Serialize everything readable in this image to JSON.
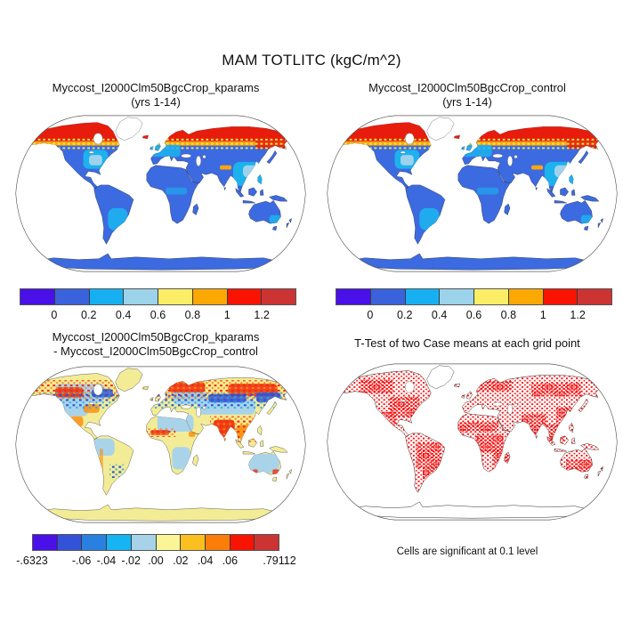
{
  "page": {
    "title": "MAM TOTLITC (kgC/m^2)",
    "background": "#ffffff"
  },
  "panels": {
    "top_left": {
      "title_line1": "Myccost_I2000Clm50BgcCrop_kparams",
      "title_line2": "(yrs 1-14)"
    },
    "top_right": {
      "title_line1": "Myccost_I2000Clm50BgcCrop_control",
      "title_line2": "(yrs 1-14)"
    },
    "bottom_left": {
      "title_line1": "Myccost_I2000Clm50BgcCrop_kparams",
      "title_line2": "- Myccost_I2000Clm50BgcCrop_control"
    },
    "bottom_right": {
      "title_line1": "T-Test of two Case means at each grid point",
      "caption": "Cells are significant at 0.1 level"
    }
  },
  "colorbars": {
    "value_scale": {
      "colors": [
        "#4a10e8",
        "#3a62dc",
        "#16b0f2",
        "#9cd2ea",
        "#fbee66",
        "#fba800",
        "#f81400",
        "#cc3333"
      ],
      "ticks": [
        {
          "label": "0",
          "pos": 1
        },
        {
          "label": "0.2",
          "pos": 2
        },
        {
          "label": "0.4",
          "pos": 3
        },
        {
          "label": "0.6",
          "pos": 4
        },
        {
          "label": "0.8",
          "pos": 5
        },
        {
          "label": "1",
          "pos": 6
        },
        {
          "label": "1.2",
          "pos": 7
        }
      ]
    },
    "diff_scale": {
      "colors": [
        "#4a10e8",
        "#3352d8",
        "#2a80e0",
        "#16b4f2",
        "#a8d2e8",
        "#faf596",
        "#fbc020",
        "#fb7d0a",
        "#f81400",
        "#cc3333"
      ],
      "ticks": [
        {
          "label": "-.6323",
          "pos": 0
        },
        {
          "label": "-.06",
          "pos": 2
        },
        {
          "label": "-.04",
          "pos": 3
        },
        {
          "label": "-.02",
          "pos": 4
        },
        {
          "label": ".00",
          "pos": 5
        },
        {
          "label": ".02",
          "pos": 6
        },
        {
          "label": ".04",
          "pos": 7
        },
        {
          "label": ".06",
          "pos": 8
        },
        {
          "label": ".79112",
          "pos": 10
        }
      ]
    }
  },
  "map_colors": {
    "ocean": "#ffffff",
    "outline": "#5a5a5a",
    "coastline": "#1c1c1c",
    "value_land": "#3c6ae0",
    "value_highlat_red": "#e81c0c",
    "value_orange_band": "#fba70c",
    "value_yellow_speck": "#f5e84a",
    "value_cyan_patch": "#1cb2ee",
    "value_lightblue_patch": "#9ed2ec",
    "diff_land": "#f3ec96",
    "diff_lightblue": "#a9d3e9",
    "diff_warm_red": "#f02c0c",
    "diff_warm_orange": "#fb8c0a",
    "diff_cool_blue": "#2a50d8",
    "diff_cool_cyan": "#18b0ee",
    "ttest_land": "#ffffff",
    "ttest_sig_red": "#f50f0f",
    "greenland_value_fill": "#ffffff",
    "lake_fill": "#ffffff"
  },
  "chart_data": {
    "type": "heatmap",
    "subtype": "global map panels (Robinson-style projection), oceans masked white",
    "title": "MAM TOTLITC (kgC/m^2)",
    "panels": [
      {
        "title": "Myccost_I2000Clm50BgcCrop_kparams (yrs 1-14)",
        "colorbar_ticks": [
          0,
          0.2,
          0.4,
          0.6,
          0.8,
          1,
          1.2
        ],
        "description": "Total litter C: high values (red/orange, >1) across boreal Canada, Alaska and Siberia; yellow transition band; low-to-mid values (royal blue / cyan / light blue) over tropics, mid-latitudes, Antarctica; Greenland masked white."
      },
      {
        "title": "Myccost_I2000Clm50BgcCrop_control (yrs 1-14)",
        "colorbar_ticks": [
          0,
          0.2,
          0.4,
          0.6,
          0.8,
          1,
          1.2
        ],
        "description": "Spatial pattern nearly identical to the kparams case."
      },
      {
        "title": "Myccost_I2000Clm50BgcCrop_kparams - Myccost_I2000Clm50BgcCrop_control",
        "colorbar_ticks": [
          -0.6323,
          -0.06,
          -0.04,
          -0.02,
          0.0,
          0.02,
          0.04,
          0.06,
          0.79112
        ],
        "description": "Difference map: speckled positive (red/orange) and negative (blue) differences concentrated along the boreal band, western North America, India, Southeast Asia and West Africa; near-zero (pale yellow / light blue) over deserts, Amazon, Australia, Antarctica."
      },
      {
        "title": "T-Test of two Case means at each grid point",
        "caption": "Cells are significant at 0.1 level",
        "description": "Red cells mark grid points with significant difference at the 0.1 level, dense over eastern North America, Sahel, central/southern Africa, India, East and Southeast Asia, Brazil and southern Australia; continents drawn as white with black coastlines."
      }
    ]
  }
}
